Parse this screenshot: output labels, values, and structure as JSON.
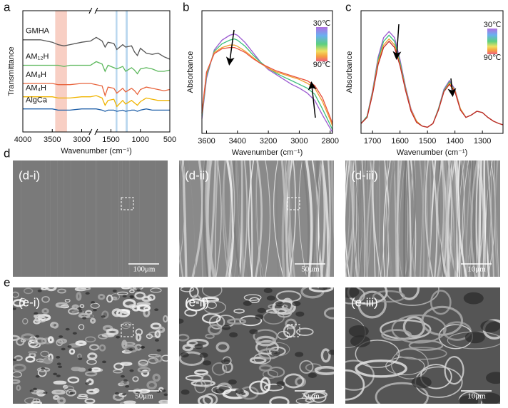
{
  "chart_data": [
    {
      "type": "line",
      "panel_label": "a",
      "ylabel": "Transmittance",
      "xlabel": "Wavenumber (cm⁻¹)",
      "xlim": [
        4000,
        500
      ],
      "xbreak": [
        2850,
        1750
      ],
      "ylim": [
        0,
        10
      ],
      "xticks": [
        4000,
        3500,
        3000,
        1500,
        1000,
        500
      ],
      "bands": [
        {
          "from": 3450,
          "to": 3250,
          "color": "#f8cfc4"
        },
        {
          "from": 1420,
          "to": 1390,
          "color": "#b9d7ef"
        },
        {
          "from": 1250,
          "to": 1215,
          "color": "#b9d7ef"
        }
      ],
      "x": [
        4000,
        3700,
        3500,
        3400,
        3300,
        3200,
        3000,
        2850,
        1750,
        1650,
        1600,
        1550,
        1450,
        1400,
        1300,
        1250,
        1150,
        1100,
        1050,
        1000,
        900,
        800,
        700,
        600,
        500
      ],
      "series": [
        {
          "name": "GMHA",
          "color": "#555555",
          "values": [
            7.6,
            7.6,
            7.4,
            7.2,
            7.1,
            7.2,
            7.4,
            7.5,
            7.8,
            7.5,
            7.0,
            7.4,
            7.3,
            6.8,
            7.2,
            7.0,
            7.1,
            6.6,
            6.3,
            6.9,
            6.5,
            6.4,
            6.5,
            6.2,
            6.0
          ]
        },
        {
          "name": "AM₁₂H",
          "color": "#5cb85c",
          "values": [
            5.5,
            5.5,
            5.5,
            5.5,
            5.4,
            5.5,
            5.5,
            5.5,
            5.8,
            5.6,
            5.0,
            5.5,
            5.3,
            5.2,
            5.4,
            5.0,
            5.3,
            5.1,
            4.8,
            5.2,
            5.3,
            5.2,
            5.0,
            5.0,
            5.1
          ]
        },
        {
          "name": "AM₈H",
          "color": "#e8643c",
          "values": [
            4.0,
            4.0,
            4.0,
            3.9,
            3.9,
            3.9,
            4.0,
            4.0,
            3.9,
            3.8,
            3.0,
            3.7,
            3.6,
            3.2,
            3.6,
            3.3,
            3.6,
            3.4,
            3.1,
            3.5,
            3.7,
            3.6,
            3.5,
            3.4,
            3.5
          ]
        },
        {
          "name": "AM₄H",
          "color": "#f0b400",
          "values": [
            2.9,
            2.9,
            2.9,
            2.8,
            2.8,
            2.8,
            2.9,
            2.9,
            3.0,
            2.8,
            2.2,
            2.6,
            2.7,
            2.1,
            2.6,
            2.3,
            2.6,
            2.4,
            2.2,
            2.5,
            2.8,
            2.7,
            2.6,
            2.6,
            2.6
          ]
        },
        {
          "name": "AlgCa",
          "color": "#1f5fa8",
          "values": [
            1.9,
            1.9,
            1.9,
            1.8,
            1.8,
            1.8,
            1.9,
            1.9,
            1.9,
            1.8,
            1.7,
            1.8,
            1.8,
            1.7,
            1.8,
            1.7,
            1.8,
            1.8,
            1.7,
            1.8,
            1.9,
            1.8,
            1.8,
            1.8,
            1.8
          ]
        }
      ]
    },
    {
      "type": "line",
      "panel_label": "b",
      "ylabel": "Absorbance",
      "xlabel": "Wavenumber (cm⁻¹)",
      "xlim": [
        3630,
        2785
      ],
      "ylim": [
        0,
        1
      ],
      "xticks": [
        3600,
        3400,
        3200,
        3000,
        2800
      ],
      "colorbar": {
        "top": "30℃",
        "bottom": "90℃"
      },
      "x": [
        3630,
        3600,
        3550,
        3500,
        3450,
        3420,
        3400,
        3350,
        3300,
        3250,
        3200,
        3150,
        3100,
        3050,
        3000,
        2950,
        2900,
        2850,
        2800,
        2785
      ],
      "series": [
        {
          "color": "#9b59d0",
          "values": [
            0.12,
            0.45,
            0.68,
            0.76,
            0.8,
            0.81,
            0.8,
            0.74,
            0.66,
            0.58,
            0.52,
            0.48,
            0.44,
            0.4,
            0.37,
            0.33,
            0.27,
            0.15,
            0.04,
            0.01
          ]
        },
        {
          "color": "#3cbf7a",
          "values": [
            0.14,
            0.47,
            0.67,
            0.73,
            0.76,
            0.77,
            0.76,
            0.71,
            0.64,
            0.58,
            0.53,
            0.49,
            0.46,
            0.43,
            0.4,
            0.37,
            0.32,
            0.2,
            0.07,
            0.03
          ]
        },
        {
          "color": "#f0a030",
          "values": [
            0.16,
            0.49,
            0.66,
            0.7,
            0.72,
            0.72,
            0.71,
            0.67,
            0.62,
            0.57,
            0.53,
            0.5,
            0.48,
            0.46,
            0.44,
            0.41,
            0.37,
            0.26,
            0.11,
            0.06
          ]
        },
        {
          "color": "#e8503c",
          "values": [
            0.17,
            0.5,
            0.65,
            0.69,
            0.7,
            0.7,
            0.69,
            0.66,
            0.61,
            0.57,
            0.54,
            0.51,
            0.49,
            0.47,
            0.45,
            0.43,
            0.39,
            0.29,
            0.13,
            0.08
          ]
        }
      ]
    },
    {
      "type": "line",
      "panel_label": "c",
      "ylabel": "Absorbance",
      "xlabel": "Wavenumber (cm⁻¹)",
      "xlim": [
        1742,
        1225
      ],
      "ylim": [
        0,
        1
      ],
      "xticks": [
        1700,
        1600,
        1500,
        1400,
        1300
      ],
      "colorbar": {
        "top": "30℃",
        "bottom": "90℃"
      },
      "x": [
        1742,
        1720,
        1700,
        1680,
        1660,
        1640,
        1620,
        1600,
        1580,
        1560,
        1540,
        1520,
        1500,
        1480,
        1460,
        1440,
        1420,
        1400,
        1380,
        1360,
        1340,
        1320,
        1300,
        1280,
        1260,
        1240,
        1225
      ],
      "series": [
        {
          "color": "#9b59d0",
          "values": [
            0.08,
            0.14,
            0.35,
            0.62,
            0.78,
            0.83,
            0.78,
            0.6,
            0.38,
            0.2,
            0.1,
            0.06,
            0.05,
            0.08,
            0.2,
            0.36,
            0.43,
            0.36,
            0.2,
            0.13,
            0.15,
            0.18,
            0.17,
            0.13,
            0.1,
            0.08,
            0.07
          ]
        },
        {
          "color": "#3cbf7a",
          "values": [
            0.08,
            0.14,
            0.34,
            0.6,
            0.75,
            0.8,
            0.75,
            0.58,
            0.37,
            0.19,
            0.1,
            0.06,
            0.05,
            0.08,
            0.2,
            0.35,
            0.42,
            0.35,
            0.2,
            0.13,
            0.15,
            0.18,
            0.17,
            0.13,
            0.1,
            0.08,
            0.07
          ]
        },
        {
          "color": "#f0a030",
          "values": [
            0.08,
            0.13,
            0.33,
            0.58,
            0.72,
            0.77,
            0.72,
            0.56,
            0.36,
            0.19,
            0.1,
            0.06,
            0.05,
            0.08,
            0.19,
            0.34,
            0.41,
            0.35,
            0.2,
            0.13,
            0.15,
            0.18,
            0.17,
            0.13,
            0.1,
            0.08,
            0.07
          ]
        },
        {
          "color": "#c0282a",
          "values": [
            0.08,
            0.13,
            0.32,
            0.56,
            0.7,
            0.75,
            0.7,
            0.55,
            0.35,
            0.18,
            0.09,
            0.06,
            0.05,
            0.08,
            0.19,
            0.34,
            0.4,
            0.34,
            0.19,
            0.13,
            0.15,
            0.18,
            0.17,
            0.13,
            0.1,
            0.08,
            0.07
          ]
        }
      ]
    }
  ],
  "sem": {
    "rows": [
      {
        "letter": "d",
        "images": [
          {
            "label": "(d-i)",
            "scale": "100μm"
          },
          {
            "label": "(d-ii)",
            "scale": "50μm"
          },
          {
            "label": "(d-iii)",
            "scale": "10μm"
          }
        ]
      },
      {
        "letter": "e",
        "images": [
          {
            "label": "(e-i)",
            "scale": "50μm"
          },
          {
            "label": "(e-ii)",
            "scale": "20μm"
          },
          {
            "label": "(e-iii)",
            "scale": "10μm"
          }
        ]
      }
    ]
  }
}
